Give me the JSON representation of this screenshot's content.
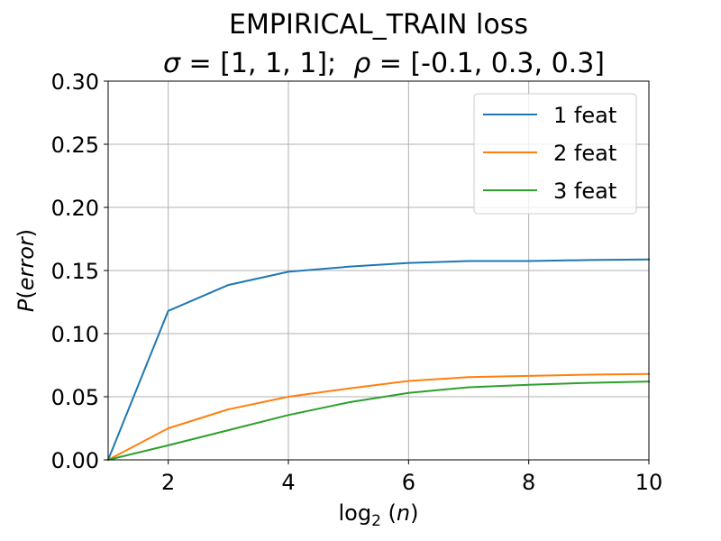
{
  "chart_data": {
    "type": "line",
    "title_line1": "EMPIRICAL_TRAIN loss",
    "title_line2": {
      "sigma_symbol": "σ",
      "sigma_rest": " = [1, 1, 1];  ",
      "rho_symbol": "ρ",
      "rho_rest": " = [-0.1, 0.3, 0.3]"
    },
    "xlabel": {
      "prefix": "log",
      "subscript": "2",
      "open": " (",
      "var": "n",
      "close": ")"
    },
    "ylabel": {
      "func": "P",
      "open": "(",
      "var": "error",
      "close": ")"
    },
    "xlim": [
      1,
      10
    ],
    "ylim": [
      0,
      0.3
    ],
    "xticks": [
      2,
      4,
      6,
      8,
      10
    ],
    "xtick_labels": [
      "2",
      "4",
      "6",
      "8",
      "10"
    ],
    "yticks": [
      0,
      0.05,
      0.1,
      0.15,
      0.2,
      0.25,
      0.3
    ],
    "ytick_labels": [
      "0.00",
      "0.05",
      "0.10",
      "0.15",
      "0.20",
      "0.25",
      "0.30"
    ],
    "grid": true,
    "legend_position": "top-right",
    "x": [
      1,
      2,
      3,
      4,
      5,
      6,
      7,
      8,
      9,
      10
    ],
    "series": [
      {
        "name": "1 feat",
        "color": "#1f77b4",
        "values": [
          0.0,
          0.118,
          0.1385,
          0.149,
          0.153,
          0.156,
          0.1575,
          0.1575,
          0.1583,
          0.1587
        ]
      },
      {
        "name": "2 feat",
        "color": "#ff7f0e",
        "values": [
          0.0,
          0.025,
          0.04,
          0.05,
          0.0565,
          0.0625,
          0.0655,
          0.0665,
          0.0675,
          0.068
        ]
      },
      {
        "name": "3 feat",
        "color": "#2ca02c",
        "values": [
          0.0,
          0.0115,
          0.0235,
          0.0355,
          0.0455,
          0.053,
          0.0575,
          0.0595,
          0.061,
          0.062
        ]
      }
    ]
  }
}
